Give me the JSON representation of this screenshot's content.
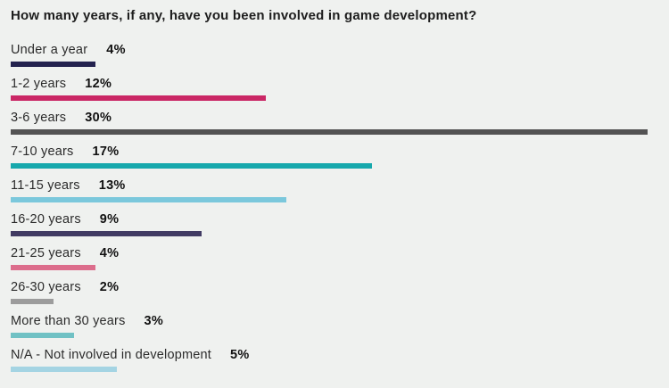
{
  "chart_data": {
    "type": "bar",
    "orientation": "horizontal",
    "title": "How many years, if any, have you been involved in game development?",
    "categories": [
      "Under a year",
      "1-2 years",
      "3-6 years",
      "7-10 years",
      "11-15 years",
      "16-20 years",
      "21-25 years",
      "26-30 years",
      "More than 30 years",
      "N/A - Not involved in development"
    ],
    "values": [
      4,
      12,
      30,
      17,
      13,
      9,
      4,
      2,
      3,
      5
    ],
    "value_labels": [
      "4%",
      "12%",
      "30%",
      "17%",
      "13%",
      "9%",
      "4%",
      "2%",
      "3%",
      "5%"
    ],
    "value_suffix": "%",
    "xlim": [
      0,
      30
    ],
    "grid": false,
    "legend": false,
    "bar_colors": [
      "#23224e",
      "#ca2765",
      "#535353",
      "#16a8ac",
      "#7bc8dc",
      "#413b63",
      "#dc6d8c",
      "#9c9c9c",
      "#70c1c4",
      "#a4d4e3"
    ],
    "background_color": "#eff1ef",
    "title_color": "#1d1d1d",
    "label_color": "#2b2b2b",
    "value_color": "#111111"
  }
}
